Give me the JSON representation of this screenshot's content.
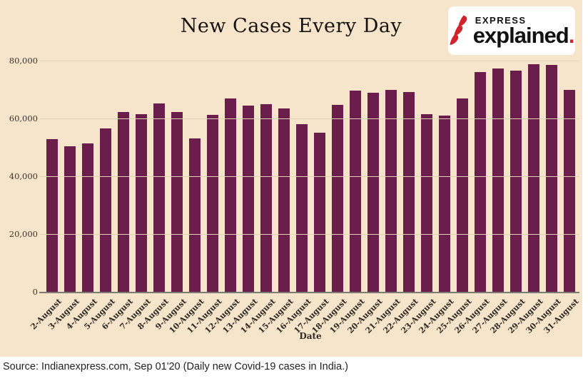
{
  "chart_data": {
    "type": "bar",
    "title": "New Cases Every Day",
    "xlabel": "Date",
    "ylabel": "",
    "categories": [
      "2-August",
      "3-August",
      "4-August",
      "5-August",
      "6-August",
      "7-August",
      "8-August",
      "9-August",
      "10-August",
      "11-August",
      "12-August",
      "13-August",
      "14-August",
      "15-August",
      "16-August",
      "17-August",
      "18-August",
      "19-August",
      "20-August",
      "21-August",
      "22-August",
      "23-August",
      "24-August",
      "25-August",
      "26-August",
      "27-August",
      "28-August",
      "29-August",
      "30-August",
      "31-August"
    ],
    "values": [
      52783,
      50488,
      51282,
      56626,
      62170,
      61455,
      65156,
      62117,
      53016,
      61252,
      66999,
      64553,
      65002,
      63490,
      57981,
      55018,
      64572,
      69672,
      68898,
      69874,
      69239,
      61408,
      60975,
      66873,
      75995,
      77266,
      76665,
      78761,
      78512,
      69921
    ],
    "ylim": [
      0,
      80000
    ],
    "ytick_labels": [
      "80,000",
      "60,000",
      "40,000",
      "20,000",
      "0"
    ],
    "grid": true,
    "legend": "none",
    "x_tick_rotation": 45,
    "bar_color": "#6B1E4B",
    "background_color": "#F7E5CB",
    "gridline_color": "#E3D1B6",
    "axis_line_color": "#7B7B73"
  },
  "logo": {
    "brand_top": "EXPRESS",
    "brand_main": "explained",
    "brand_dot": ".",
    "icon": "express-flame-icon",
    "accent_color": "#D2232A"
  },
  "footer": {
    "source_text": "Source: Indianexpress.com, Sep 01'20 (Daily new Covid-19 cases in India.)"
  }
}
